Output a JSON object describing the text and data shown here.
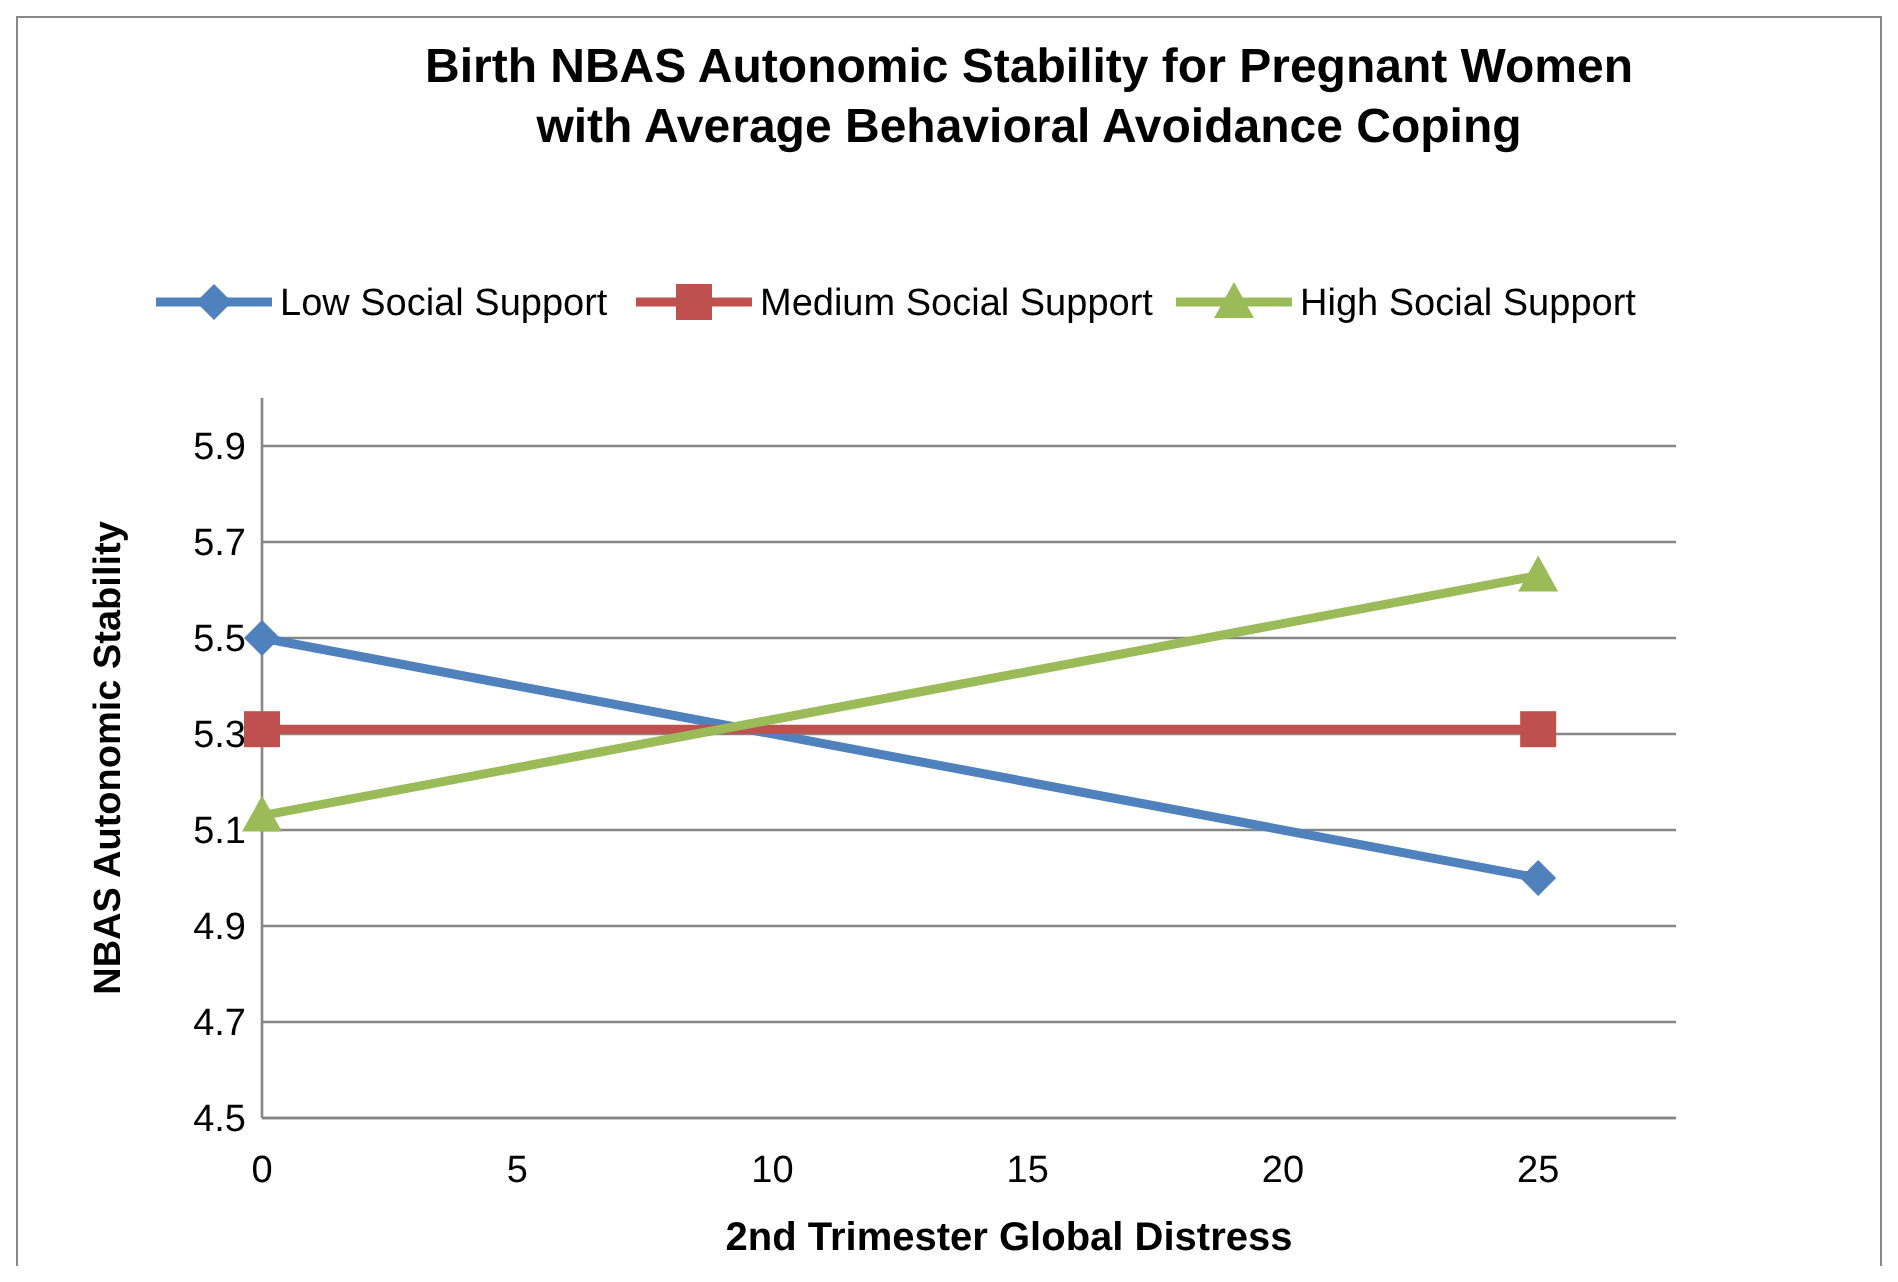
{
  "chart_data": {
    "type": "line",
    "title": "Birth NBAS Autonomic Stability for Pregnant Women with Average Behavioral Avoidance Coping",
    "xlabel": "2nd Trimester Global Distress",
    "ylabel": "NBAS Autonomic Stability",
    "x": [
      0,
      25
    ],
    "series": [
      {
        "name": "Low Social Support",
        "color": "#4f81bd",
        "marker": "diamond",
        "values": [
          5.5,
          5.0
        ]
      },
      {
        "name": "Medium Social Support",
        "color": "#c0504d",
        "marker": "square",
        "values": [
          5.31,
          5.31
        ]
      },
      {
        "name": "High Social Support",
        "color": "#9bbb59",
        "marker": "triangle",
        "values": [
          5.13,
          5.63
        ]
      }
    ],
    "xlim": [
      0,
      27.7
    ],
    "xticks": [
      0,
      5,
      10,
      15,
      20,
      25
    ],
    "ylim": [
      4.5,
      6.0
    ],
    "yticks": [
      {
        "value": 4.5,
        "label": "4.5"
      },
      4.7,
      4.9,
      5.1,
      5.3,
      5.5,
      5.7,
      5.9
    ],
    "grid": "y",
    "legend": "top"
  }
}
